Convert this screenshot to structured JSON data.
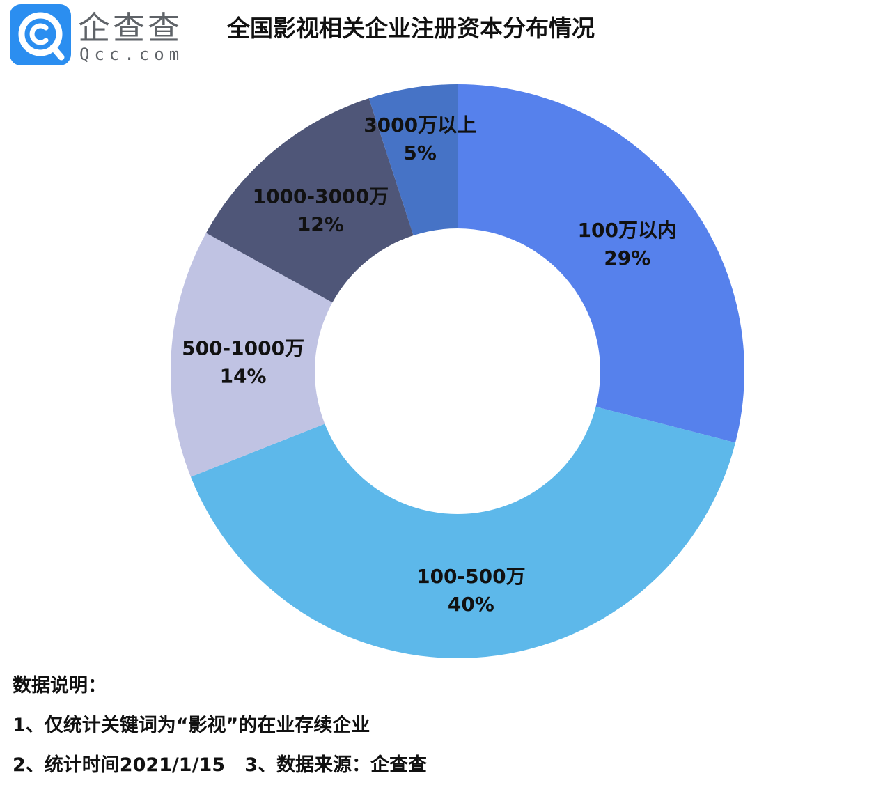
{
  "header": {
    "brand_name": "企查查",
    "brand_domain": "Qcc.com"
  },
  "chart_data": {
    "type": "pie",
    "title": "全国影视相关企业注册资本分布情况",
    "donut": true,
    "slices": [
      {
        "label": "100万以内",
        "value": 29,
        "percent_label": "29%",
        "color": "#5681ec"
      },
      {
        "label": "100-500万",
        "value": 40,
        "percent_label": "40%",
        "color": "#5db8ea"
      },
      {
        "label": "500-1000万",
        "value": 14,
        "percent_label": "14%",
        "color": "#c0c3e3"
      },
      {
        "label": "1000-3000万",
        "value": 12,
        "percent_label": "12%",
        "color": "#4f5678"
      },
      {
        "label": "3000万以上",
        "value": 5,
        "percent_label": "5%",
        "color": "#4673c6"
      }
    ]
  },
  "notes": {
    "heading": "数据说明：",
    "line1": "1、仅统计关键词为“影视”的在业存续企业",
    "line2": "2、统计时间2021/1/15   3、数据来源：企查查"
  }
}
